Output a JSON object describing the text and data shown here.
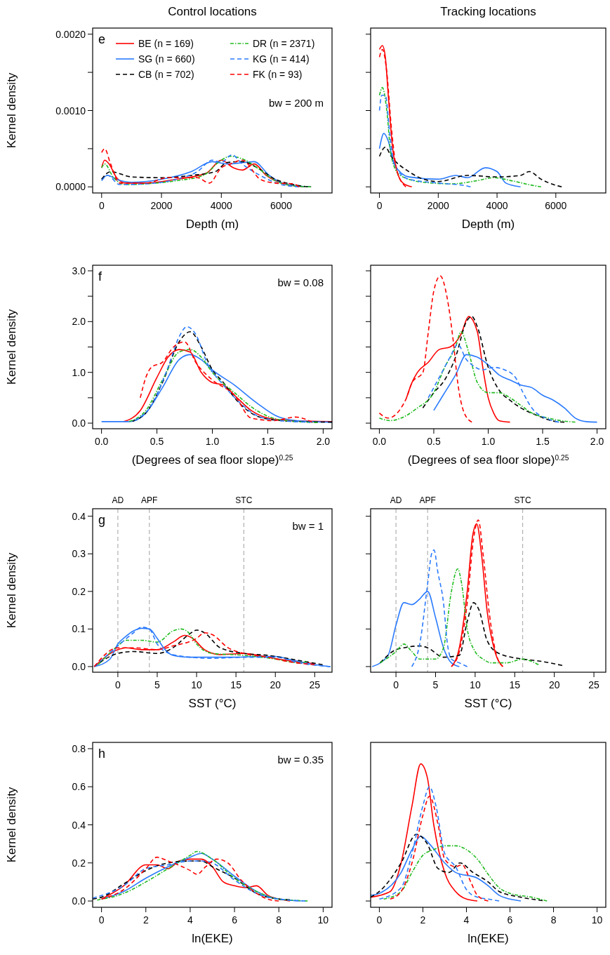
{
  "chart_data": [
    {
      "type": "line",
      "title": "Control locations",
      "xlabel": "Depth (m)",
      "ylabel": "Kernel density",
      "annotations": [
        "e",
        "bw = 200 m"
      ],
      "legend": "top",
      "xlim": [
        -300,
        7700
      ],
      "ylim": [
        -8e-05,
        0.00208
      ],
      "xticks": [
        0,
        2000,
        4000,
        6000
      ],
      "yticks": [
        {
          "value": 0,
          "label": "0.0000"
        },
        {
          "value": 0.0005,
          "label": null
        },
        {
          "value": 0.001,
          "label": "0.0010"
        },
        {
          "value": 0.0015,
          "label": null
        },
        {
          "value": 0.002,
          "label": "0.0020"
        }
      ],
      "series": [
        {
          "name": "BE (n = 169)",
          "color": "#ff0000",
          "line_style": "solid",
          "x": [
            0,
            100,
            250,
            500,
            800,
            1500,
            2500,
            3500,
            4000,
            4400,
            4700,
            5100,
            5500,
            6000,
            6500,
            7000
          ],
          "values": [
            0.00025,
            0.00035,
            0.0003,
            0.00012,
            5e-05,
            5e-05,
            0.0001,
            0.00018,
            0.00035,
            0.00025,
            0.00022,
            0.0003,
            0.00015,
            5e-05,
            1e-05,
            0
          ]
        },
        {
          "name": "SG (n = 660)",
          "color": "#2b7bff",
          "line_style": "solid",
          "x": [
            0,
            200,
            500,
            1000,
            2000,
            3000,
            3700,
            4200,
            4800,
            5100,
            5600,
            6200,
            7000
          ],
          "values": [
            0.0001,
            0.00015,
            0.0001,
            6e-05,
            0.0001,
            0.0002,
            0.00033,
            0.0003,
            0.00032,
            0.00033,
            0.00015,
            3e-05,
            0
          ]
        },
        {
          "name": "CB (n = 702)",
          "color": "#000000",
          "line_style": "dashed",
          "x": [
            0,
            300,
            1000,
            2000,
            3000,
            3800,
            4200,
            4700,
            5200,
            5800,
            6400,
            6900
          ],
          "values": [
            0.0001,
            0.0002,
            0.00013,
            0.00012,
            0.00015,
            0.0002,
            0.00032,
            0.00033,
            0.00025,
            0.0001,
            3e-05,
            0
          ]
        },
        {
          "name": "DR (n = 2371)",
          "color": "#22bb22",
          "line_style": "dotted",
          "x": [
            0,
            100,
            400,
            800,
            1500,
            2500,
            3400,
            4000,
            4300,
            4800,
            5200,
            5800,
            6500,
            7000
          ],
          "values": [
            0.00025,
            0.0003,
            0.00012,
            3e-05,
            4e-05,
            8e-05,
            0.00015,
            0.00035,
            0.0004,
            0.00035,
            0.00025,
            8e-05,
            1e-05,
            0
          ]
        },
        {
          "name": "KG (n = 414)",
          "color": "#2b7bff",
          "line_style": "dashed",
          "x": [
            0,
            200,
            600,
            1500,
            2500,
            3200,
            3700,
            4000,
            4350,
            4700,
            5300,
            6000,
            6600
          ],
          "values": [
            8e-05,
            0.00015,
            3e-05,
            4e-05,
            0.0001,
            0.0002,
            0.00035,
            0.00032,
            0.00042,
            0.0003,
            0.00015,
            3e-05,
            0
          ]
        },
        {
          "name": "FK (n = 93)",
          "color": "#ff0000",
          "line_style": "dashed",
          "x": [
            0,
            100,
            300,
            600,
            1500,
            2200,
            3200,
            3600,
            4000,
            4300,
            4700,
            5300,
            5800,
            6400,
            6600
          ],
          "values": [
            0.00045,
            0.0005,
            0.0003,
            5e-05,
            5e-05,
            0.00012,
            0.00012,
            5e-05,
            0.00025,
            0.0003,
            0.00035,
            0.0001,
            5e-05,
            4e-05,
            0
          ]
        }
      ]
    },
    {
      "type": "line",
      "title": "Tracking locations",
      "xlabel": "Depth (m)",
      "tick_labels": "x",
      "xlim": [
        -300,
        7700
      ],
      "ylim": [
        -8e-05,
        0.00208
      ],
      "xticks": [
        0,
        2000,
        4000,
        6000
      ],
      "yticks": [
        0,
        0.0005,
        0.001,
        0.0015,
        0.002
      ],
      "series": [
        {
          "color": "#ff0000",
          "line_style": "solid",
          "x": [
            0,
            100,
            200,
            300,
            450,
            600,
            800,
            1100
          ],
          "values": [
            0.0018,
            0.00185,
            0.0017,
            0.0012,
            0.0005,
            0.0002,
            5e-05,
            0
          ]
        },
        {
          "color": "#2b7bff",
          "line_style": "solid",
          "x": [
            0,
            150,
            300,
            500,
            1000,
            2000,
            2600,
            3000,
            3600,
            4000,
            4300,
            4800
          ],
          "values": [
            0.0005,
            0.0007,
            0.0006,
            0.0003,
            0.00013,
            0.0001,
            0.00015,
            0.00012,
            0.00025,
            0.0002,
            5e-05,
            0
          ]
        },
        {
          "color": "#000000",
          "line_style": "dashed",
          "x": [
            0,
            200,
            400,
            1000,
            1500,
            2000,
            3000,
            4000,
            4800,
            5100,
            5500,
            6000,
            6200
          ],
          "values": [
            0.0004,
            0.00052,
            0.0004,
            0.0002,
            0.0001,
            7e-05,
            0.00015,
            0.00013,
            0.00015,
            0.0002,
            0.0001,
            2e-05,
            0
          ]
        },
        {
          "color": "#22bb22",
          "line_style": "dotted",
          "x": [
            0,
            100,
            250,
            400,
            700,
            1500,
            2500,
            3300,
            3900,
            4500,
            5200,
            5500
          ],
          "values": [
            0.0012,
            0.0013,
            0.001,
            0.0004,
            0.00015,
            6e-05,
            4e-05,
            8e-05,
            0.00012,
            8e-05,
            2e-05,
            0
          ]
        },
        {
          "color": "#2b7bff",
          "line_style": "dashed",
          "x": [
            0,
            80,
            200,
            350,
            500,
            1000,
            2000,
            3000,
            3100
          ],
          "values": [
            0.001,
            0.0012,
            0.0012,
            0.0007,
            0.0003,
            0.0001,
            5e-05,
            1e-05,
            0
          ]
        },
        {
          "color": "#ff0000",
          "line_style": "dashed",
          "x": [
            0,
            100,
            250,
            400,
            600,
            900
          ],
          "values": [
            0.0017,
            0.0018,
            0.0015,
            0.0008,
            0.0002,
            0
          ]
        }
      ]
    },
    {
      "type": "line",
      "xlabel": "(Degrees of sea floor slope)$^{0.25}$",
      "ylabel": "Kernel density",
      "annotations": [
        "f",
        "bw = 0.08"
      ],
      "xlim": [
        -0.08,
        2.08
      ],
      "ylim": [
        -0.11,
        3.11
      ],
      "xticks": [
        {
          "value": 0,
          "label": "0.0"
        },
        {
          "value": 0.5,
          "label": "0.5"
        },
        {
          "value": 1,
          "label": "1.0"
        },
        {
          "value": 1.5,
          "label": "1.5"
        },
        {
          "value": 2,
          "label": "2.0"
        }
      ],
      "yticks": [
        {
          "value": 0,
          "label": "0.0"
        },
        {
          "value": 0.5,
          "label": null
        },
        {
          "value": 1,
          "label": "1.0"
        },
        {
          "value": 1.5,
          "label": null
        },
        {
          "value": 2,
          "label": "2.0"
        },
        {
          "value": 2.5,
          "label": null
        },
        {
          "value": 3,
          "label": "3.0"
        }
      ],
      "series": [
        {
          "color": "#ff0000",
          "line_style": "solid",
          "x": [
            0.2,
            0.35,
            0.5,
            0.6,
            0.7,
            0.8,
            0.9,
            1,
            1.1,
            1.2,
            1.35,
            1.5,
            1.7,
            2.08
          ],
          "values": [
            0.03,
            0.25,
            0.9,
            1.3,
            1.45,
            1.4,
            1,
            0.8,
            0.75,
            0.55,
            0.25,
            0.1,
            0.05,
            0.03
          ]
        },
        {
          "color": "#2b7bff",
          "line_style": "solid",
          "x": [
            0,
            0.25,
            0.4,
            0.55,
            0.7,
            0.8,
            0.9,
            1,
            1.2,
            1.4,
            1.6,
            1.8,
            2.08
          ],
          "values": [
            0.03,
            0.03,
            0.2,
            0.7,
            1.25,
            1.35,
            1.25,
            1.05,
            0.75,
            0.4,
            0.12,
            0.04,
            0.02
          ]
        },
        {
          "color": "#000000",
          "line_style": "dashed",
          "x": [
            0.28,
            0.4,
            0.55,
            0.7,
            0.8,
            0.9,
            1,
            1.1,
            1.2,
            1.35,
            1.5,
            1.8,
            2.08
          ],
          "values": [
            0.04,
            0.2,
            0.8,
            1.6,
            1.8,
            1.5,
            1.05,
            0.8,
            0.5,
            0.2,
            0.08,
            0.03,
            0.02
          ]
        },
        {
          "color": "#22bb22",
          "line_style": "dotted",
          "x": [
            0.25,
            0.4,
            0.55,
            0.7,
            0.8,
            0.9,
            1,
            1.2,
            1.4,
            1.6,
            1.95
          ],
          "values": [
            0.03,
            0.25,
            0.85,
            1.4,
            1.45,
            1.3,
            1,
            0.6,
            0.25,
            0.07,
            0.01
          ]
        },
        {
          "color": "#2b7bff",
          "line_style": "dashed",
          "x": [
            0.3,
            0.45,
            0.6,
            0.7,
            0.77,
            0.85,
            0.95,
            1.1,
            1.25,
            1.4,
            1.6,
            1.9
          ],
          "values": [
            0.05,
            0.35,
            1.1,
            1.7,
            1.9,
            1.75,
            1.2,
            0.75,
            0.4,
            0.15,
            0.05,
            0.02
          ]
        },
        {
          "color": "#ff0000",
          "line_style": "dashed",
          "x": [
            0.35,
            0.4,
            0.45,
            0.55,
            0.65,
            0.75,
            0.85,
            1,
            1.2,
            1.35,
            1.55,
            1.75,
            1.9
          ],
          "values": [
            0.5,
            0.9,
            1.1,
            1.2,
            1.5,
            1.6,
            1.2,
            0.85,
            0.55,
            0.1,
            0.05,
            0.12,
            0.02
          ]
        }
      ]
    },
    {
      "type": "line",
      "xlabel": "(Degrees of sea floor slope)$^{0.25}$",
      "tick_labels": "x",
      "xlim": [
        -0.08,
        2.08
      ],
      "ylim": [
        -0.11,
        3.11
      ],
      "xticks": [
        {
          "value": 0,
          "label": "0.0"
        },
        {
          "value": 0.5,
          "label": "0.5"
        },
        {
          "value": 1,
          "label": "1.0"
        },
        {
          "value": 1.5,
          "label": "1.5"
        },
        {
          "value": 2,
          "label": "2.0"
        }
      ],
      "yticks": [
        0,
        0.5,
        1,
        1.5,
        2,
        2.5,
        3
      ],
      "series": [
        {
          "color": "#ff0000",
          "line_style": "solid",
          "x": [
            0.25,
            0.3,
            0.35,
            0.45,
            0.55,
            0.65,
            0.75,
            0.82,
            0.9,
            0.95,
            1,
            1.05,
            1.1,
            1.2
          ],
          "values": [
            0.5,
            0.8,
            1,
            1.2,
            1.45,
            1.5,
            1.75,
            2.1,
            1.8,
            1.1,
            0.5,
            0.2,
            0.05,
            0.02
          ]
        },
        {
          "color": "#2b7bff",
          "line_style": "solid",
          "x": [
            0.5,
            0.6,
            0.7,
            0.8,
            0.9,
            1,
            1.1,
            1.2,
            1.3,
            1.4,
            1.5,
            1.6,
            1.7,
            1.8,
            1.9,
            2
          ],
          "values": [
            0.25,
            0.6,
            0.95,
            1.35,
            1.3,
            1.15,
            0.95,
            0.85,
            0.75,
            0.7,
            0.55,
            0.45,
            0.3,
            0.1,
            0.03,
            0.02
          ]
        },
        {
          "color": "#000000",
          "line_style": "dashed",
          "x": [
            0.4,
            0.5,
            0.6,
            0.7,
            0.8,
            0.85,
            0.9,
            1,
            1.1,
            1.2,
            1.3,
            1.45,
            1.6,
            1.7
          ],
          "values": [
            0.3,
            0.6,
            0.85,
            1.3,
            2,
            2.1,
            1.9,
            1.1,
            0.65,
            0.45,
            0.3,
            0.15,
            0.04,
            0.02
          ]
        },
        {
          "color": "#22bb22",
          "line_style": "dotted",
          "x": [
            0,
            0.1,
            0.2,
            0.35,
            0.5,
            0.6,
            0.7,
            0.75,
            0.82,
            0.9,
            1,
            1.1,
            1.2,
            1.3,
            1.4,
            1.55,
            1.7,
            1.8
          ],
          "values": [
            0.1,
            0.05,
            0.1,
            0.3,
            0.6,
            1.1,
            1.5,
            1.8,
            1.4,
            0.8,
            0.6,
            0.6,
            0.5,
            0.35,
            0.2,
            0.1,
            0.04,
            0.02
          ]
        },
        {
          "color": "#2b7bff",
          "line_style": "dashed",
          "x": [
            0.45,
            0.55,
            0.65,
            0.72,
            0.8,
            0.85,
            0.95,
            1.05,
            1.15,
            1.25,
            1.32,
            1.4,
            1.55,
            1.65
          ],
          "values": [
            0.5,
            0.9,
            1.3,
            1.55,
            1.25,
            1.15,
            1.05,
            1.1,
            1.05,
            0.9,
            0.6,
            0.3,
            0.08,
            0.02
          ]
        },
        {
          "color": "#ff0000",
          "line_style": "dashed",
          "x": [
            0,
            0.08,
            0.2,
            0.25,
            0.3,
            0.4,
            0.45,
            0.5,
            0.56,
            0.62,
            0.68,
            0.72,
            0.78,
            0.85
          ],
          "values": [
            0.2,
            0.1,
            0.3,
            0.5,
            0.8,
            1,
            1.8,
            2.6,
            2.9,
            2.5,
            1.6,
            0.8,
            0.2,
            0.02
          ]
        }
      ]
    },
    {
      "type": "line",
      "xlabel": "SST (°C)",
      "ylabel": "Kernel density",
      "annotations": [
        "g",
        "bw = 1"
      ],
      "xlim": [
        -3.2,
        27.2
      ],
      "ylim": [
        -0.015,
        0.42
      ],
      "xticks": [
        0,
        5,
        10,
        15,
        20,
        25
      ],
      "yticks": [
        {
          "value": 0,
          "label": "0.0"
        },
        {
          "value": 0.1,
          "label": "0.1"
        },
        {
          "value": 0.2,
          "label": "0.2"
        },
        {
          "value": 0.3,
          "label": "0.3"
        },
        {
          "value": 0.4,
          "label": "0.4"
        }
      ],
      "ref_lines": [
        {
          "axis": "x",
          "value": 0,
          "label": "AD",
          "color": "#b0b0b0",
          "line_style": "dashed"
        },
        {
          "axis": "x",
          "value": 4,
          "label": "APF",
          "color": "#b0b0b0",
          "line_style": "dashed"
        },
        {
          "axis": "x",
          "value": 16,
          "label": "STC",
          "color": "#b0b0b0",
          "line_style": "dashed"
        }
      ],
      "series": [
        {
          "color": "#ff0000",
          "line_style": "solid",
          "x": [
            -3,
            0,
            1,
            3,
            5,
            7,
            8.5,
            9.5,
            11,
            13,
            16,
            19,
            22,
            25
          ],
          "values": [
            0,
            0.045,
            0.05,
            0.045,
            0.045,
            0.065,
            0.083,
            0.075,
            0.045,
            0.032,
            0.035,
            0.025,
            0.015,
            0.008
          ]
        },
        {
          "color": "#2b7bff",
          "line_style": "solid",
          "x": [
            -3,
            -1,
            0,
            1,
            2,
            3,
            4,
            5,
            6,
            7,
            9,
            12,
            15,
            18,
            20,
            22,
            25,
            27
          ],
          "values": [
            0,
            0.02,
            0.06,
            0.08,
            0.095,
            0.102,
            0.1,
            0.075,
            0.045,
            0.03,
            0.025,
            0.025,
            0.025,
            0.027,
            0.027,
            0.018,
            0.005,
            0
          ]
        },
        {
          "color": "#000000",
          "line_style": "dashed",
          "x": [
            -3,
            0,
            2,
            5,
            7,
            9,
            10,
            11,
            13,
            16,
            19,
            22,
            26
          ],
          "values": [
            0,
            0.035,
            0.04,
            0.035,
            0.05,
            0.085,
            0.097,
            0.09,
            0.05,
            0.035,
            0.03,
            0.02,
            0.005
          ]
        },
        {
          "color": "#22bb22",
          "line_style": "dotted",
          "x": [
            -2.5,
            0,
            1,
            3,
            5,
            7,
            8,
            9,
            10,
            12,
            16,
            20,
            23,
            24
          ],
          "values": [
            0.005,
            0.055,
            0.07,
            0.07,
            0.065,
            0.095,
            0.1,
            0.09,
            0.06,
            0.035,
            0.03,
            0.02,
            0.01,
            0.013
          ]
        },
        {
          "color": "#2b7bff",
          "line_style": "dashed",
          "x": [
            -3,
            0,
            2,
            3,
            4,
            5,
            6,
            8,
            12,
            16,
            20,
            23,
            27
          ],
          "values": [
            0,
            0.055,
            0.09,
            0.105,
            0.1,
            0.06,
            0.04,
            0.028,
            0.022,
            0.025,
            0.025,
            0.01,
            0
          ]
        },
        {
          "color": "#ff0000",
          "line_style": "dashed",
          "x": [
            -3,
            0,
            2,
            5,
            7,
            10,
            11,
            12,
            14,
            16,
            19,
            22,
            25
          ],
          "values": [
            0,
            0.05,
            0.05,
            0.045,
            0.055,
            0.075,
            0.09,
            0.085,
            0.05,
            0.035,
            0.025,
            0.012,
            0.005
          ]
        }
      ]
    },
    {
      "type": "line",
      "xlabel": "SST (°C)",
      "tick_labels": "x",
      "xlim": [
        -3.2,
        26.5
      ],
      "ylim": [
        -0.015,
        0.42
      ],
      "xticks": [
        0,
        5,
        10,
        15,
        20,
        25
      ],
      "yticks": [
        0,
        0.1,
        0.2,
        0.3,
        0.4
      ],
      "ref_lines": [
        {
          "axis": "x",
          "value": 0,
          "label": "AD",
          "color": "#b0b0b0",
          "line_style": "dashed"
        },
        {
          "axis": "x",
          "value": 4,
          "label": "APF",
          "color": "#b0b0b0",
          "line_style": "dashed"
        },
        {
          "axis": "x",
          "value": 16,
          "label": "STC",
          "color": "#b0b0b0",
          "line_style": "dashed"
        }
      ],
      "series": [
        {
          "color": "#ff0000",
          "line_style": "solid",
          "x": [
            7,
            8,
            9,
            9.7,
            10.2,
            10.8,
            11.5,
            12.5,
            13.5
          ],
          "values": [
            0,
            0.05,
            0.2,
            0.35,
            0.38,
            0.3,
            0.15,
            0.04,
            0
          ]
        },
        {
          "color": "#2b7bff",
          "line_style": "solid",
          "x": [
            -3,
            -1,
            0,
            1,
            2,
            3,
            4,
            5,
            6,
            7,
            8
          ],
          "values": [
            0,
            0.03,
            0.11,
            0.17,
            0.165,
            0.18,
            0.2,
            0.13,
            0.05,
            0.01,
            0
          ]
        },
        {
          "color": "#000000",
          "line_style": "dashed",
          "x": [
            -2,
            0,
            1,
            3,
            4,
            6,
            8,
            9,
            9.8,
            10.5,
            11.5,
            13,
            16,
            18,
            21
          ],
          "values": [
            0.01,
            0.045,
            0.05,
            0.055,
            0.05,
            0.025,
            0.03,
            0.12,
            0.17,
            0.15,
            0.07,
            0.035,
            0.02,
            0.015,
            0.003
          ]
        },
        {
          "color": "#22bb22",
          "line_style": "dotted",
          "x": [
            -2,
            0,
            1,
            2,
            3,
            5,
            6,
            7,
            7.8,
            8.3,
            9,
            10,
            11,
            12,
            14,
            16,
            17,
            18
          ],
          "values": [
            0.01,
            0.04,
            0.06,
            0.04,
            0.02,
            0.02,
            0.05,
            0.2,
            0.26,
            0.22,
            0.1,
            0.04,
            0.02,
            0.01,
            0.01,
            0.02,
            0.015,
            0.005
          ]
        },
        {
          "color": "#2b7bff",
          "line_style": "dashed",
          "x": [
            2,
            3,
            4,
            4.5,
            4.8,
            5.3,
            6,
            6.5,
            7,
            8,
            9
          ],
          "values": [
            0,
            0.06,
            0.22,
            0.3,
            0.31,
            0.25,
            0.17,
            0.06,
            0.02,
            0.01,
            0
          ]
        },
        {
          "color": "#ff0000",
          "line_style": "dashed",
          "x": [
            7,
            8,
            9,
            9.8,
            10.4,
            11,
            11.8,
            12.7,
            13.5
          ],
          "values": [
            0,
            0.04,
            0.17,
            0.34,
            0.39,
            0.3,
            0.14,
            0.03,
            0
          ]
        }
      ]
    },
    {
      "type": "line",
      "xlabel": "ln(EKE)",
      "ylabel": "Kernel density",
      "annotations": [
        "h",
        "bw = 0.35"
      ],
      "xlim": [
        -0.4,
        10.4
      ],
      "ylim": [
        -0.033,
        0.833
      ],
      "xticks": [
        0,
        2,
        4,
        6,
        8,
        10
      ],
      "yticks": [
        {
          "value": 0,
          "label": "0.0"
        },
        {
          "value": 0.2,
          "label": "0.2"
        },
        {
          "value": 0.4,
          "label": "0.4"
        },
        {
          "value": 0.6,
          "label": "0.6"
        },
        {
          "value": 0.8,
          "label": "0.8"
        }
      ],
      "series": [
        {
          "color": "#ff0000",
          "line_style": "solid",
          "x": [
            0,
            1,
            2,
            2.5,
            3,
            3.5,
            4,
            4.5,
            5,
            5.5,
            6,
            6.5,
            7,
            7.5,
            8,
            8.5
          ],
          "values": [
            0.01,
            0.08,
            0.19,
            0.19,
            0.17,
            0.21,
            0.22,
            0.22,
            0.18,
            0.1,
            0.08,
            0.07,
            0.08,
            0.03,
            0.01,
            0
          ]
        },
        {
          "color": "#2b7bff",
          "line_style": "solid",
          "x": [
            0,
            1,
            2,
            3,
            4,
            4.5,
            5,
            6,
            7,
            8,
            9
          ],
          "values": [
            0.01,
            0.05,
            0.12,
            0.18,
            0.23,
            0.25,
            0.22,
            0.13,
            0.05,
            0.01,
            0
          ]
        },
        {
          "color": "#000000",
          "line_style": "dashed",
          "x": [
            -0.4,
            0,
            1,
            2,
            3,
            4,
            4.5,
            5,
            6,
            7,
            8,
            8.5
          ],
          "values": [
            0.01,
            0.02,
            0.09,
            0.16,
            0.2,
            0.21,
            0.21,
            0.18,
            0.12,
            0.04,
            0.01,
            0.006
          ]
        },
        {
          "color": "#22bb22",
          "line_style": "dotted",
          "x": [
            -0.2,
            1,
            2,
            3,
            4,
            4.3,
            5,
            6,
            7,
            8,
            9,
            9.3
          ],
          "values": [
            0.005,
            0.04,
            0.1,
            0.17,
            0.24,
            0.26,
            0.22,
            0.12,
            0.05,
            0.01,
            0.002,
            0
          ]
        },
        {
          "color": "#2b7bff",
          "line_style": "dashed",
          "x": [
            -0.4,
            1,
            2,
            3,
            4,
            4.5,
            5,
            6,
            7,
            8,
            9.2
          ],
          "values": [
            0.015,
            0.08,
            0.17,
            0.19,
            0.21,
            0.21,
            0.2,
            0.11,
            0.04,
            0.01,
            0
          ]
        },
        {
          "color": "#ff0000",
          "line_style": "dashed",
          "x": [
            0,
            1,
            2,
            2.5,
            3,
            4,
            4.3,
            4.7,
            5.2,
            5.7,
            6.3,
            7,
            7.5,
            8
          ],
          "values": [
            0.01,
            0.06,
            0.17,
            0.23,
            0.21,
            0.16,
            0.14,
            0.18,
            0.22,
            0.2,
            0.11,
            0.04,
            0.01,
            0
          ]
        }
      ]
    },
    {
      "type": "line",
      "xlabel": "ln(EKE)",
      "tick_labels": "x",
      "xlim": [
        -0.4,
        10.4
      ],
      "ylim": [
        -0.033,
        0.833
      ],
      "xticks": [
        0,
        2,
        4,
        6,
        8,
        10
      ],
      "yticks": [
        0,
        0.2,
        0.4,
        0.6
      ],
      "series": [
        {
          "color": "#ff0000",
          "line_style": "solid",
          "x": [
            -0.4,
            0.5,
            1,
            1.5,
            1.9,
            2.2,
            2.5,
            3,
            3.5,
            4,
            4.5
          ],
          "values": [
            0.02,
            0.05,
            0.2,
            0.5,
            0.72,
            0.65,
            0.4,
            0.15,
            0.05,
            0.01,
            0
          ]
        },
        {
          "color": "#2b7bff",
          "line_style": "solid",
          "x": [
            -0.4,
            0,
            1,
            1.5,
            1.9,
            2.3,
            3,
            3.5,
            4.5,
            5,
            5.5,
            6,
            6.5
          ],
          "values": [
            0.03,
            0.04,
            0.15,
            0.27,
            0.34,
            0.3,
            0.2,
            0.15,
            0.12,
            0.08,
            0.03,
            0.01,
            0
          ]
        },
        {
          "color": "#000000",
          "line_style": "dashed",
          "x": [
            -0.4,
            0,
            1,
            1.7,
            2.2,
            2.7,
            3.2,
            3.7,
            4.3,
            5,
            5.5,
            6.5,
            7.5
          ],
          "values": [
            0.02,
            0.05,
            0.2,
            0.35,
            0.3,
            0.17,
            0.15,
            0.2,
            0.15,
            0.1,
            0.05,
            0.02,
            0.002
          ]
        },
        {
          "color": "#22bb22",
          "line_style": "dotted",
          "x": [
            0.2,
            1,
            1.5,
            2,
            2.5,
            3,
            3.5,
            4,
            4.5,
            5,
            5.5,
            6,
            7,
            7.7
          ],
          "values": [
            0.01,
            0.05,
            0.15,
            0.24,
            0.27,
            0.29,
            0.29,
            0.27,
            0.22,
            0.14,
            0.07,
            0.04,
            0.02,
            0
          ]
        },
        {
          "color": "#2b7bff",
          "line_style": "dashed",
          "x": [
            0,
            1,
            1.5,
            2,
            2.3,
            2.6,
            3,
            3.5,
            4,
            4.5,
            5,
            5.5
          ],
          "values": [
            0.01,
            0.07,
            0.25,
            0.5,
            0.6,
            0.5,
            0.25,
            0.18,
            0.06,
            0.02,
            0.01,
            0
          ]
        },
        {
          "color": "#ff0000",
          "line_style": "dashed",
          "x": [
            0.5,
            1,
            1.5,
            2,
            2.3,
            2.7,
            3,
            3.5,
            3.8,
            4.2,
            4.5,
            5
          ],
          "values": [
            0.01,
            0.05,
            0.2,
            0.45,
            0.55,
            0.4,
            0.22,
            0.18,
            0.19,
            0.1,
            0.03,
            0
          ]
        }
      ]
    }
  ]
}
